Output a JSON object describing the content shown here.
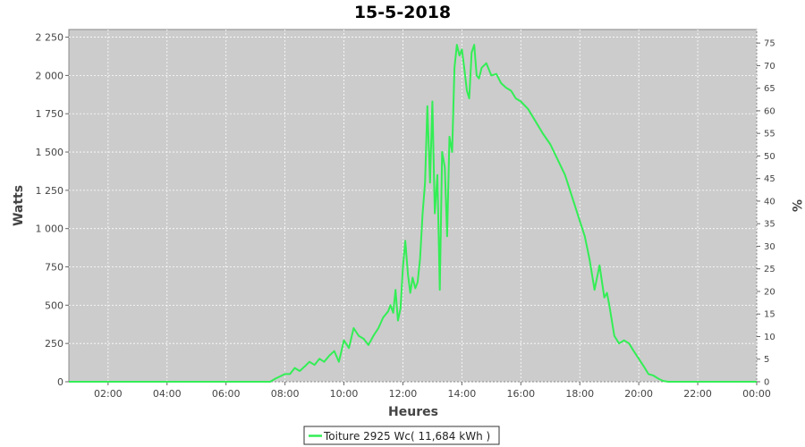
{
  "chart_data": {
    "type": "line",
    "title": "15-5-2018",
    "xlabel": "Heures",
    "ylabel": "Watts",
    "y2label": "%",
    "xlim": [
      0.67,
      24.0
    ],
    "ylim": [
      0,
      2300
    ],
    "y2lim": [
      0,
      78
    ],
    "x_ticks": [
      "02:00",
      "04:00",
      "06:00",
      "08:00",
      "10:00",
      "12:00",
      "14:00",
      "16:00",
      "18:00",
      "20:00",
      "22:00",
      "00:00"
    ],
    "y_ticks": [
      "0",
      "250",
      "500",
      "750",
      "1 000",
      "1 250",
      "1 500",
      "1 750",
      "2 000",
      "2 250"
    ],
    "y2_ticks": [
      "0",
      "5",
      "10",
      "15",
      "20",
      "25",
      "30",
      "35",
      "40",
      "45",
      "50",
      "55",
      "60",
      "65",
      "70",
      "75"
    ],
    "grid": true,
    "legend_position": "bottom",
    "plot_background": "#cccccc",
    "series": [
      {
        "name": "Toiture 2925 Wc( 11,684 kWh )",
        "color": "#33ee55",
        "x": [
          0.67,
          4.0,
          6.0,
          7.0,
          7.5,
          7.67,
          8.0,
          8.17,
          8.33,
          8.5,
          8.67,
          8.83,
          9.0,
          9.17,
          9.33,
          9.5,
          9.67,
          9.83,
          10.0,
          10.17,
          10.33,
          10.5,
          10.67,
          10.83,
          11.0,
          11.17,
          11.33,
          11.5,
          11.58,
          11.67,
          11.75,
          11.83,
          11.92,
          12.0,
          12.08,
          12.17,
          12.25,
          12.33,
          12.42,
          12.5,
          12.58,
          12.67,
          12.75,
          12.83,
          12.92,
          13.0,
          13.08,
          13.17,
          13.25,
          13.33,
          13.42,
          13.5,
          13.58,
          13.67,
          13.75,
          13.83,
          13.92,
          14.0,
          14.08,
          14.17,
          14.25,
          14.33,
          14.42,
          14.5,
          14.58,
          14.67,
          14.83,
          15.0,
          15.17,
          15.33,
          15.5,
          15.67,
          15.83,
          16.0,
          16.25,
          16.5,
          16.75,
          17.0,
          17.25,
          17.5,
          17.75,
          18.0,
          18.17,
          18.33,
          18.5,
          18.67,
          18.83,
          18.92,
          19.0,
          19.17,
          19.33,
          19.5,
          19.67,
          19.83,
          20.0,
          20.17,
          20.33,
          20.5,
          20.67,
          20.83,
          21.0,
          22.0,
          24.0
        ],
        "y": [
          0,
          0,
          0,
          0,
          0,
          20,
          50,
          50,
          90,
          70,
          100,
          130,
          110,
          150,
          130,
          170,
          200,
          130,
          270,
          220,
          350,
          300,
          280,
          240,
          300,
          350,
          420,
          460,
          500,
          450,
          600,
          400,
          480,
          750,
          920,
          700,
          580,
          680,
          610,
          650,
          800,
          1100,
          1300,
          1800,
          1300,
          1830,
          1100,
          1350,
          600,
          1500,
          1400,
          950,
          1600,
          1500,
          2050,
          2200,
          2130,
          2170,
          2050,
          1900,
          1850,
          2150,
          2200,
          2000,
          1980,
          2050,
          2080,
          2000,
          2010,
          1950,
          1920,
          1900,
          1850,
          1830,
          1780,
          1700,
          1620,
          1550,
          1450,
          1350,
          1200,
          1050,
          950,
          800,
          600,
          760,
          550,
          580,
          500,
          300,
          250,
          270,
          250,
          200,
          150,
          100,
          50,
          40,
          20,
          5,
          0,
          0,
          0
        ]
      }
    ]
  }
}
